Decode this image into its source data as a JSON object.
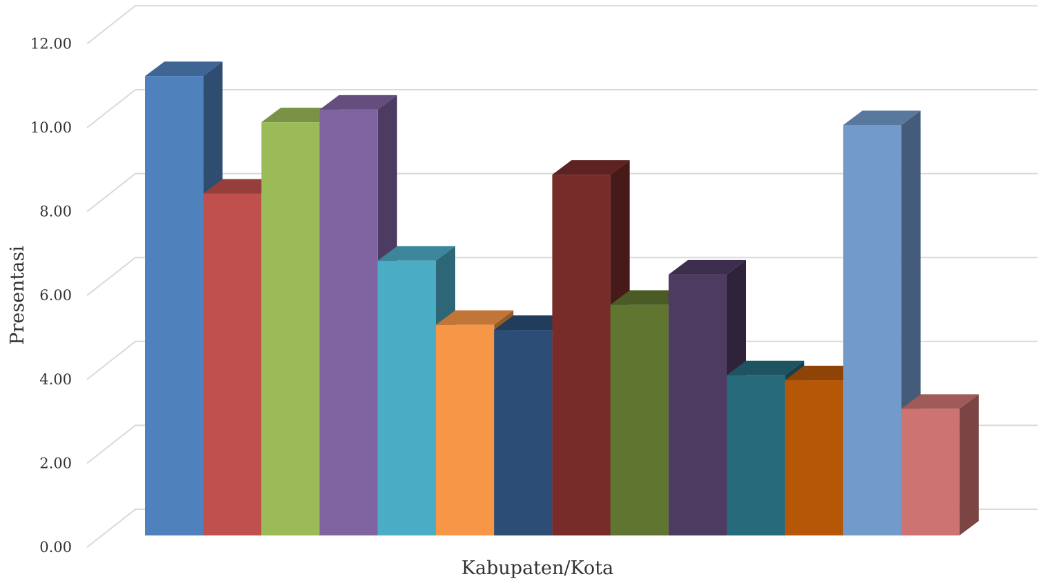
{
  "chart_data": {
    "type": "bar",
    "style": "3d-column",
    "title": "",
    "xlabel": "Kabupaten/Kota",
    "ylabel": "Presentasi",
    "ylim": [
      0,
      12
    ],
    "yticks": [
      "0.00",
      "2.00",
      "4.00",
      "6.00",
      "8.00",
      "10.00",
      "12.00"
    ],
    "grid": true,
    "legend": "none",
    "series": [
      {
        "color": "#4F81BD",
        "values": [
          10.95
        ]
      },
      {
        "color": "#C0504D",
        "values": [
          8.15
        ]
      },
      {
        "color": "#9BBB59",
        "values": [
          9.85
        ]
      },
      {
        "color": "#8064A2",
        "values": [
          10.15
        ]
      },
      {
        "color": "#4BACC6",
        "values": [
          6.55
        ]
      },
      {
        "color": "#F79646",
        "values": [
          5.02
        ]
      },
      {
        "color": "#2C4D75",
        "values": [
          4.9
        ]
      },
      {
        "color": "#772C2A",
        "values": [
          8.6
        ]
      },
      {
        "color": "#5F7530",
        "values": [
          5.5
        ]
      },
      {
        "color": "#4D3B62",
        "values": [
          6.22
        ]
      },
      {
        "color": "#276A7C",
        "values": [
          3.82
        ]
      },
      {
        "color": "#B65708",
        "values": [
          3.7
        ]
      },
      {
        "color": "#729ACA",
        "values": [
          9.78
        ]
      },
      {
        "color": "#CD7371",
        "values": [
          3.02
        ]
      }
    ]
  }
}
